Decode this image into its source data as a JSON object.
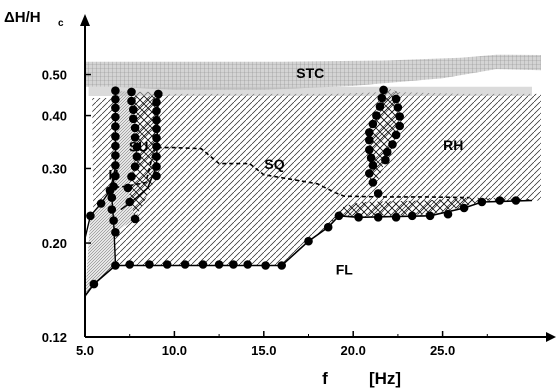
{
  "chart_data": {
    "type": "scatter",
    "title": "",
    "xlabel": "f",
    "xunit": "[Hz]",
    "ylabel": "ΔH/H",
    "ylabel_sub": "c",
    "xlim": [
      5.0,
      30.0
    ],
    "ylim": [
      0.12,
      0.55
    ],
    "x_ticks": [
      5.0,
      10.0,
      15.0,
      20.0,
      25.0
    ],
    "x_tick_labels": [
      "5.0",
      "10.0",
      "15.0",
      "20.0",
      "25.0"
    ],
    "y_ticks": [
      0.12,
      0.2,
      0.3,
      0.4,
      0.5
    ],
    "y_tick_labels": [
      "0.12",
      "0.20",
      "0.30",
      "0.40",
      "0.50"
    ],
    "grid": false,
    "region_labels": [
      {
        "text": "STC",
        "x": 17.6,
        "y": 0.5
      },
      {
        "text": "SU",
        "x": 8.0,
        "y": 0.336
      },
      {
        "text": "SQ",
        "x": 15.6,
        "y": 0.305
      },
      {
        "text": "RH",
        "x": 25.6,
        "y": 0.338
      },
      {
        "text": "H",
        "x": 6.6,
        "y": 0.288
      },
      {
        "text": "FL",
        "x": 19.5,
        "y": 0.172
      }
    ],
    "series": [
      {
        "marker": "filled-circle",
        "points": [
          [
            5.5,
            0.16
          ],
          [
            6.7,
            0.177
          ],
          [
            7.5,
            0.178
          ],
          [
            8.6,
            0.178
          ],
          [
            9.6,
            0.178
          ],
          [
            10.6,
            0.178
          ],
          [
            11.6,
            0.178
          ],
          [
            12.5,
            0.178
          ],
          [
            13.3,
            0.178
          ],
          [
            14.1,
            0.178
          ],
          [
            15.1,
            0.177
          ],
          [
            16.0,
            0.177
          ],
          [
            17.5,
            0.202
          ],
          [
            18.6,
            0.218
          ],
          [
            19.2,
            0.232
          ],
          [
            20.3,
            0.23
          ],
          [
            21.4,
            0.23
          ],
          [
            22.4,
            0.23
          ],
          [
            23.3,
            0.232
          ],
          [
            24.3,
            0.232
          ],
          [
            25.3,
            0.234
          ],
          [
            26.2,
            0.242
          ],
          [
            27.2,
            0.25
          ],
          [
            28.2,
            0.252
          ],
          [
            29.1,
            0.252
          ],
          [
            5.3,
            0.232
          ],
          [
            5.9,
            0.248
          ],
          [
            6.4,
            0.266
          ],
          [
            6.7,
            0.458
          ],
          [
            6.7,
            0.437
          ],
          [
            6.7,
            0.417
          ],
          [
            6.7,
            0.397
          ],
          [
            6.7,
            0.377
          ],
          [
            6.7,
            0.357
          ],
          [
            6.7,
            0.339
          ],
          [
            6.7,
            0.322
          ],
          [
            6.7,
            0.305
          ],
          [
            6.7,
            0.288
          ],
          [
            6.6,
            0.272
          ],
          [
            6.5,
            0.256
          ],
          [
            6.5,
            0.24
          ],
          [
            6.6,
            0.226
          ],
          [
            6.7,
            0.212
          ],
          [
            7.6,
            0.455
          ],
          [
            7.6,
            0.433
          ],
          [
            7.7,
            0.413
          ],
          [
            7.7,
            0.393
          ],
          [
            7.8,
            0.374
          ],
          [
            7.8,
            0.355
          ],
          [
            7.9,
            0.337
          ],
          [
            7.9,
            0.32
          ],
          [
            7.8,
            0.303
          ],
          [
            7.6,
            0.287
          ],
          [
            7.4,
            0.27
          ],
          [
            7.5,
            0.25
          ],
          [
            7.8,
            0.228
          ],
          [
            9.1,
            0.45
          ],
          [
            9.0,
            0.43
          ],
          [
            9.0,
            0.41
          ],
          [
            9.0,
            0.39
          ],
          [
            9.0,
            0.372
          ],
          [
            9.0,
            0.354
          ],
          [
            9.0,
            0.338
          ],
          [
            9.0,
            0.32
          ],
          [
            9.0,
            0.303
          ],
          [
            9.0,
            0.288
          ],
          [
            21.7,
            0.46
          ],
          [
            21.6,
            0.44
          ],
          [
            21.5,
            0.42
          ],
          [
            21.3,
            0.4
          ],
          [
            21.1,
            0.382
          ],
          [
            20.9,
            0.365
          ],
          [
            20.9,
            0.35
          ],
          [
            20.9,
            0.332
          ],
          [
            21.0,
            0.318
          ],
          [
            21.1,
            0.305
          ],
          [
            22.4,
            0.438
          ],
          [
            22.5,
            0.418
          ],
          [
            22.6,
            0.398
          ],
          [
            22.6,
            0.378
          ],
          [
            22.4,
            0.36
          ],
          [
            22.2,
            0.342
          ],
          [
            21.9,
            0.328
          ],
          [
            21.8,
            0.314
          ],
          [
            20.9,
            0.292
          ],
          [
            21.1,
            0.278
          ],
          [
            21.4,
            0.262
          ]
        ]
      }
    ]
  }
}
